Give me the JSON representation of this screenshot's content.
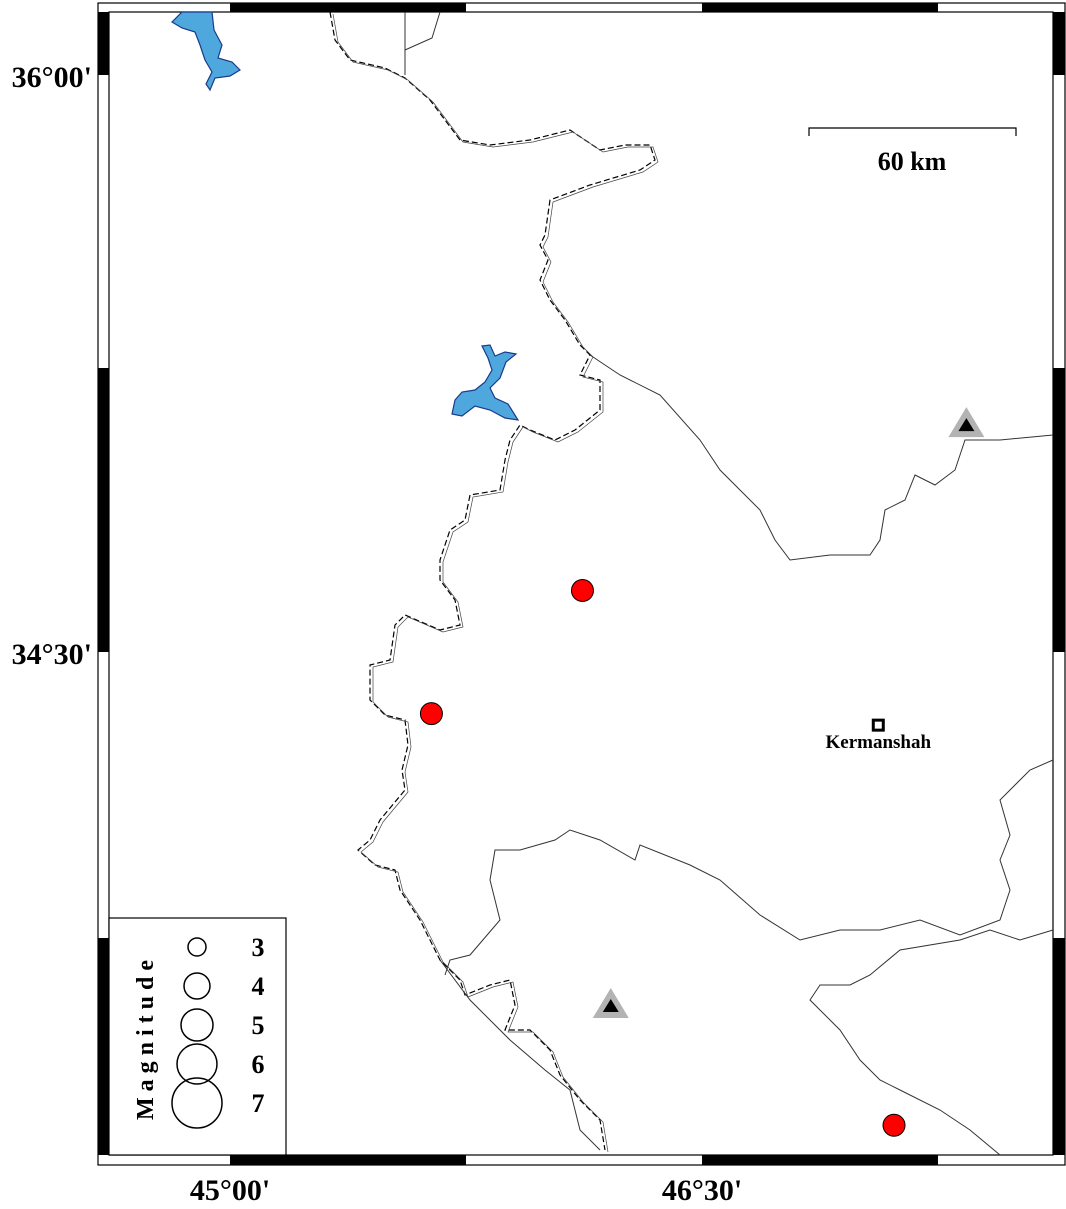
{
  "map": {
    "axes": {
      "x_ticks": [
        {
          "value": 45.0,
          "label": "45°00'"
        },
        {
          "value": 46.5,
          "label": "46°30'"
        }
      ],
      "y_ticks": [
        {
          "value": 36.0,
          "label": "36°00'"
        },
        {
          "value": 34.5,
          "label": "34°30'"
        }
      ]
    },
    "scale_bar": {
      "label": "60 km"
    },
    "cities": [
      {
        "name": "Kermanshah",
        "lon": 47.06,
        "lat": 34.31
      }
    ],
    "events": [
      {
        "lon": 46.12,
        "lat": 34.66,
        "color": "#ff0000"
      },
      {
        "lon": 45.64,
        "lat": 34.34,
        "color": "#ff0000"
      },
      {
        "lon": 47.11,
        "lat": 33.27,
        "color": "#ff0000"
      }
    ],
    "stations": [
      {
        "lon": 47.34,
        "lat": 35.09,
        "icon": "triangle-icon"
      },
      {
        "lon": 46.21,
        "lat": 33.58,
        "icon": "triangle-icon"
      }
    ],
    "legend": {
      "title": "Magnitude",
      "items": [
        {
          "label": "3"
        },
        {
          "label": "4"
        },
        {
          "label": "5"
        },
        {
          "label": "6"
        },
        {
          "label": "7"
        }
      ]
    },
    "colors": {
      "event": "#ff0000",
      "lake": "#4ea8de",
      "station_halo": "#b3b3b3"
    }
  }
}
